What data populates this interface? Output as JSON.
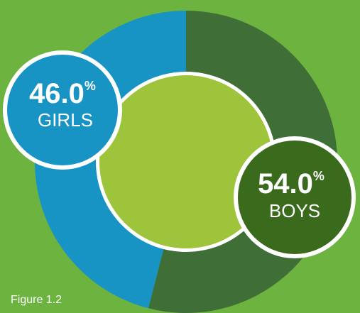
{
  "colors": {
    "background": "#6db33f",
    "girls": "#1794c4",
    "boys": "#3f6f36",
    "center": "#9dc43a",
    "boys_badge": "#3a6a1c",
    "white": "#ffffff"
  },
  "chart_data": {
    "type": "pie",
    "donut": true,
    "slices": [
      {
        "label": "GIRLS",
        "value": 46.0,
        "value_text": "46.0",
        "unit": "%"
      },
      {
        "label": "BOYS",
        "value": 54.0,
        "value_text": "54.0",
        "unit": "%"
      }
    ]
  },
  "caption": "Figure 1.2"
}
